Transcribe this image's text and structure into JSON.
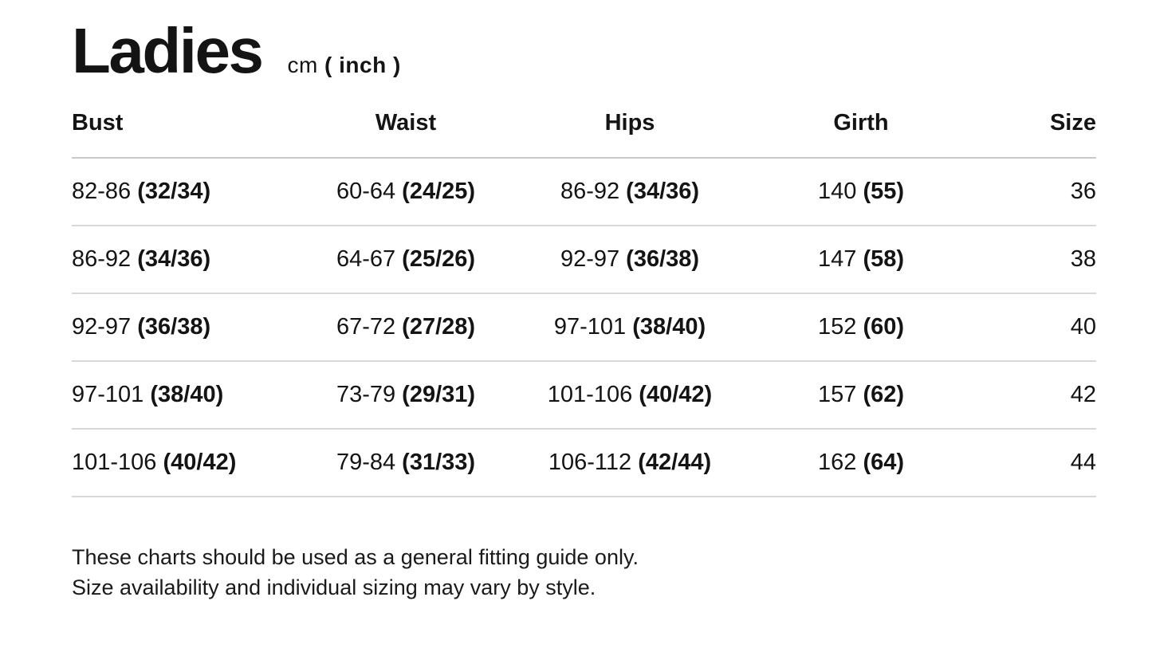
{
  "header": {
    "title": "Ladies",
    "unit_prefix": "cm ",
    "unit_bold": "( inch )"
  },
  "table": {
    "columns": [
      "Bust",
      "Waist",
      "Hips",
      "Girth",
      "Size"
    ],
    "rows": [
      {
        "bust_cm": "82-86",
        "bust_in": "(32/34)",
        "waist_cm": "60-64",
        "waist_in": "(24/25)",
        "hips_cm": "86-92",
        "hips_in": "(34/36)",
        "girth_cm": "140",
        "girth_in": "(55)",
        "size": "36"
      },
      {
        "bust_cm": "86-92",
        "bust_in": "(34/36)",
        "waist_cm": "64-67",
        "waist_in": "(25/26)",
        "hips_cm": "92-97",
        "hips_in": "(36/38)",
        "girth_cm": "147",
        "girth_in": "(58)",
        "size": "38"
      },
      {
        "bust_cm": "92-97",
        "bust_in": "(36/38)",
        "waist_cm": "67-72",
        "waist_in": "(27/28)",
        "hips_cm": "97-101",
        "hips_in": "(38/40)",
        "girth_cm": "152",
        "girth_in": "(60)",
        "size": "40"
      },
      {
        "bust_cm": "97-101",
        "bust_in": "(38/40)",
        "waist_cm": "73-79",
        "waist_in": "(29/31)",
        "hips_cm": "101-106",
        "hips_in": "(40/42)",
        "girth_cm": "157",
        "girth_in": "(62)",
        "size": "42"
      },
      {
        "bust_cm": "101-106",
        "bust_in": "(40/42)",
        "waist_cm": "79-84",
        "waist_in": "(31/33)",
        "hips_cm": "106-112",
        "hips_in": "(42/44)",
        "girth_cm": "162",
        "girth_in": "(64)",
        "size": "44"
      }
    ]
  },
  "footer": {
    "line1": "These charts should be used as a general fitting guide only.",
    "line2": "Size availability and individual sizing may vary by style."
  },
  "colors": {
    "text": "#141414",
    "divider": "#d8d8d8",
    "header_divider": "#c9c9c9",
    "background": "#ffffff"
  }
}
